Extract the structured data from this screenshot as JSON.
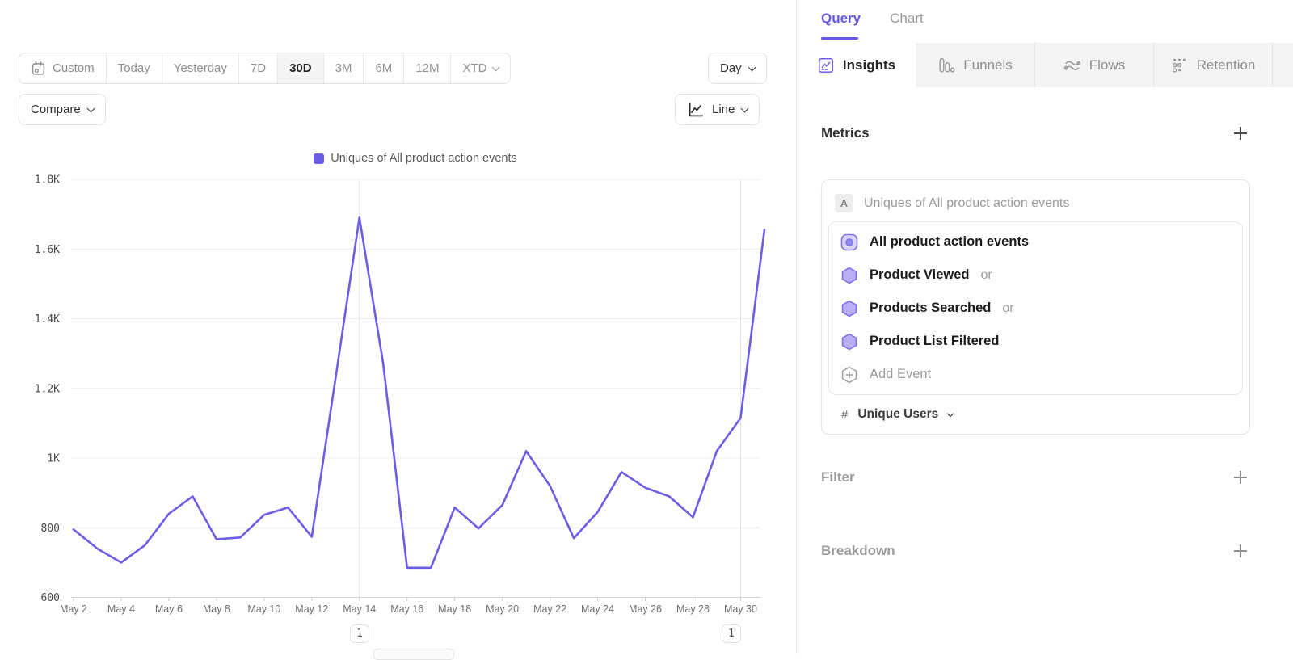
{
  "colors": {
    "accent": "#6c5ce6",
    "line": "#6c5ce6",
    "hexagon_fill": "#b9adf4",
    "hexagon_stroke": "#7e6deb",
    "tab_strip_bg": "#f3f3f3",
    "grid": "#ececec"
  },
  "toolbar": {
    "date_ranges": [
      {
        "label": "Custom"
      },
      {
        "label": "Today"
      },
      {
        "label": "Yesterday"
      },
      {
        "label": "7D"
      },
      {
        "label": "30D"
      },
      {
        "label": "3M"
      },
      {
        "label": "6M"
      },
      {
        "label": "12M"
      },
      {
        "label": "XTD"
      }
    ],
    "selected_range": "30D",
    "granularity_label": "Day",
    "compare_label": "Compare",
    "chart_type_label": "Line"
  },
  "chart": {
    "legend": "Uniques of All product action events",
    "annotations": [
      {
        "label": "1",
        "under": "May 14"
      },
      {
        "label": "1",
        "under": "May 30"
      }
    ]
  },
  "chart_data": {
    "type": "line",
    "series": [
      {
        "name": "Uniques of All product action events",
        "values": [
          795,
          740,
          700,
          750,
          840,
          890,
          767,
          772,
          837,
          858,
          774,
          1230,
          1690,
          1270,
          685,
          685,
          858,
          798,
          865,
          1020,
          920,
          770,
          845,
          960,
          915,
          890,
          830,
          1020,
          1115,
          1655
        ]
      }
    ],
    "x": [
      "May 2",
      "May 3",
      "May 4",
      "May 5",
      "May 6",
      "May 7",
      "May 8",
      "May 9",
      "May 10",
      "May 11",
      "May 12",
      "May 13",
      "May 14",
      "May 15",
      "May 16",
      "May 17",
      "May 18",
      "May 19",
      "May 20",
      "May 21",
      "May 22",
      "May 23",
      "May 24",
      "May 25",
      "May 26",
      "May 27",
      "May 28",
      "May 29",
      "May 30",
      "May 31"
    ],
    "xtick_step": 2,
    "xtick_last_index": 28,
    "ylim": [
      600,
      1800
    ],
    "yticks": [
      {
        "label": "600",
        "value": 600
      },
      {
        "label": "800",
        "value": 800
      },
      {
        "label": "1K",
        "value": 1000
      },
      {
        "label": "1.2K",
        "value": 1200
      },
      {
        "label": "1.4K",
        "value": 1400
      },
      {
        "label": "1.6K",
        "value": 1600
      },
      {
        "label": "1.8K",
        "value": 1800
      }
    ],
    "vline_indices": [
      12,
      28
    ],
    "grid": true,
    "legend_position": "top-center"
  },
  "query_panel": {
    "top_tabs": [
      {
        "label": "Query"
      },
      {
        "label": "Chart"
      }
    ],
    "active_top_tab": "Query",
    "report_tabs": [
      {
        "label": "Insights"
      },
      {
        "label": "Funnels"
      },
      {
        "label": "Flows"
      },
      {
        "label": "Retention"
      }
    ],
    "active_report_tab": "Insights",
    "metrics": {
      "title": "Metrics",
      "card": {
        "badge": "A",
        "summary": "Uniques of All product action events",
        "events": [
          {
            "name": "All product action events",
            "suffix": ""
          },
          {
            "name": "Product Viewed",
            "suffix": "or"
          },
          {
            "name": "Products Searched",
            "suffix": "or"
          },
          {
            "name": "Product List Filtered",
            "suffix": ""
          }
        ],
        "add_event_label": "Add Event",
        "measurement": {
          "prefix": "#",
          "label": "Unique Users"
        }
      }
    },
    "filter": {
      "title": "Filter"
    },
    "breakdown": {
      "title": "Breakdown"
    }
  }
}
